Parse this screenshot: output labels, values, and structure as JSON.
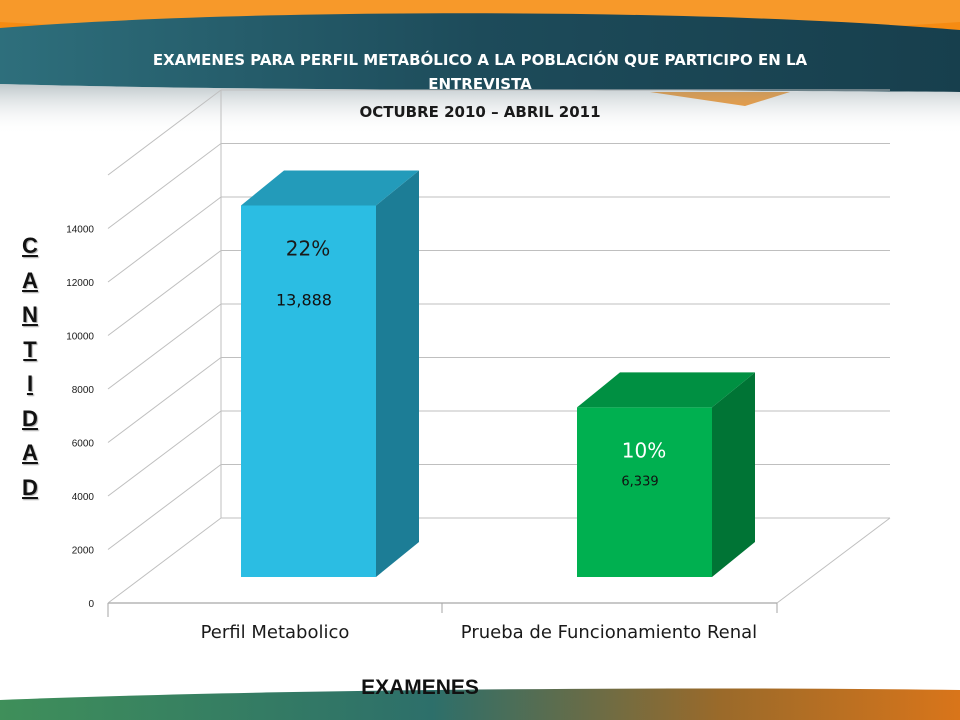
{
  "slide": {
    "title_line_1": "EXAMENES PARA PERFIL METABÓLICO A LA POBLACIÓN QUE PARTICIPO EN LA",
    "title_line_2": "ENTREVISTA",
    "subtitle": "OCTUBRE 2010 – ABRIL 2011",
    "ylabel_letters": [
      "C",
      "A",
      "N",
      "T",
      "I",
      "D",
      "A",
      "D"
    ],
    "xlabel": "EXAMENES"
  },
  "chart_data": {
    "type": "bar",
    "title": "",
    "xlabel": "EXAMENES",
    "ylabel": "CANTIDAD",
    "categories": [
      "Perfil Metabolico",
      "Prueba de Funcionamiento Renal"
    ],
    "series": [
      {
        "values": [
          13888,
          6339
        ],
        "value_labels": [
          "13,888",
          "6,339"
        ],
        "percent_labels": [
          "22%",
          "10%"
        ],
        "colors": [
          "#2bbde3",
          "#00b050"
        ]
      }
    ],
    "yticks": [
      0,
      2000,
      4000,
      6000,
      8000,
      10000,
      12000,
      14000
    ],
    "ylim": [
      0,
      14000
    ],
    "grid": true,
    "legend": "none",
    "three_d": true
  },
  "theme": {
    "header_dark": "#1f4d5c",
    "header_teal": "#2d6b78",
    "orange": "#f48a12",
    "footer_green": "#3e8a57",
    "footer_orange": "#d7741b"
  }
}
